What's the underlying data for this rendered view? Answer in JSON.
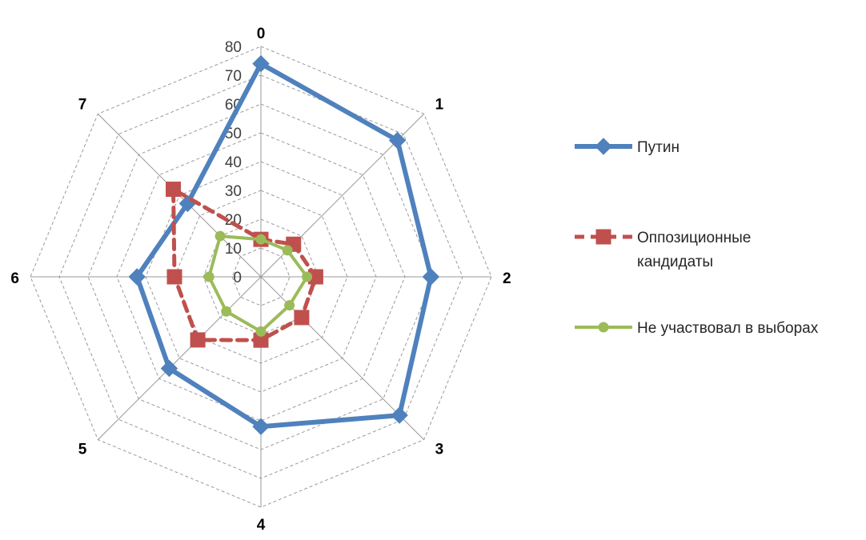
{
  "chart_data": {
    "type": "radar",
    "title": "",
    "categories": [
      "0",
      "1",
      "2",
      "3",
      "4",
      "5",
      "6",
      "7"
    ],
    "rlim": [
      0,
      80
    ],
    "rticks": [
      "0",
      "10",
      "20",
      "30",
      "40",
      "50",
      "60",
      "70",
      "80"
    ],
    "grid": true,
    "legend_position": "right",
    "series": [
      {
        "name": "Путин",
        "color": "#4f81bd",
        "line_style": "solid",
        "marker": "diamond",
        "values": [
          74,
          67,
          59,
          68,
          52,
          45,
          43,
          36
        ]
      },
      {
        "name": "Оппозиционные кандидаты",
        "name_lines": [
          "Оппозиционные",
          "кандидаты"
        ],
        "color": "#c0504d",
        "line_style": "dashed",
        "marker": "square",
        "values": [
          13,
          16,
          19,
          20,
          22,
          31,
          30,
          43
        ]
      },
      {
        "name": "Не участвовал в выборах",
        "color": "#9bbb59",
        "line_style": "solid",
        "marker": "circle",
        "values": [
          13,
          13,
          16,
          14,
          19,
          17,
          18,
          20
        ]
      }
    ]
  }
}
